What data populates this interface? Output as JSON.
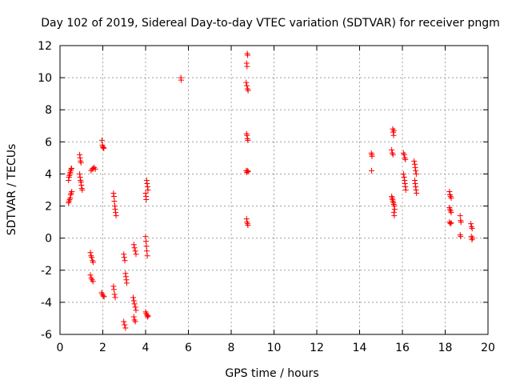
{
  "chart_data": {
    "type": "scatter",
    "title": "Day 102 of 2019, Sidereal Day-to-day VTEC variation (SDTVAR) for receiver pngm",
    "xlabel": "GPS time / hours",
    "ylabel": "SDTVAR / TECUs",
    "xlim": [
      0,
      20
    ],
    "ylim": [
      -6,
      12
    ],
    "xticks": [
      0,
      2,
      4,
      6,
      8,
      10,
      12,
      14,
      16,
      18,
      20
    ],
    "yticks": [
      -6,
      -4,
      -2,
      0,
      2,
      4,
      6,
      8,
      10,
      12
    ],
    "grid": true,
    "marker": "+",
    "color": "#ff0000",
    "series": [
      {
        "name": "SDTVAR",
        "points": [
          [
            0.4,
            3.6
          ],
          [
            0.42,
            3.8
          ],
          [
            0.44,
            3.9
          ],
          [
            0.46,
            4.0
          ],
          [
            0.48,
            4.1
          ],
          [
            0.5,
            4.2
          ],
          [
            0.52,
            4.3
          ],
          [
            0.54,
            4.35
          ],
          [
            0.4,
            2.2
          ],
          [
            0.42,
            2.3
          ],
          [
            0.45,
            2.4
          ],
          [
            0.48,
            2.5
          ],
          [
            0.5,
            2.7
          ],
          [
            0.52,
            2.8
          ],
          [
            0.55,
            2.9
          ],
          [
            0.92,
            5.2
          ],
          [
            0.94,
            5.0
          ],
          [
            0.96,
            4.8
          ],
          [
            0.98,
            4.7
          ],
          [
            0.92,
            4.0
          ],
          [
            0.94,
            3.8
          ],
          [
            0.96,
            3.6
          ],
          [
            0.98,
            3.5
          ],
          [
            1.0,
            3.3
          ],
          [
            1.02,
            3.1
          ],
          [
            1.04,
            3.0
          ],
          [
            1.45,
            4.2
          ],
          [
            1.5,
            4.3
          ],
          [
            1.55,
            4.35
          ],
          [
            1.6,
            4.4
          ],
          [
            1.65,
            4.3
          ],
          [
            1.42,
            -0.9
          ],
          [
            1.45,
            -1.1
          ],
          [
            1.48,
            -1.2
          ],
          [
            1.52,
            -1.4
          ],
          [
            1.55,
            -1.5
          ],
          [
            1.42,
            -2.3
          ],
          [
            1.46,
            -2.5
          ],
          [
            1.5,
            -2.6
          ],
          [
            1.54,
            -2.7
          ],
          [
            1.96,
            6.1
          ],
          [
            1.98,
            5.8
          ],
          [
            2.0,
            5.7
          ],
          [
            2.02,
            5.65
          ],
          [
            2.05,
            5.6
          ],
          [
            1.94,
            -3.4
          ],
          [
            1.98,
            -3.5
          ],
          [
            2.02,
            -3.6
          ],
          [
            2.06,
            -3.65
          ],
          [
            2.5,
            2.8
          ],
          [
            2.52,
            2.6
          ],
          [
            2.54,
            2.3
          ],
          [
            2.56,
            2.0
          ],
          [
            2.58,
            1.8
          ],
          [
            2.6,
            1.6
          ],
          [
            2.62,
            1.4
          ],
          [
            2.5,
            -3.0
          ],
          [
            2.52,
            -3.2
          ],
          [
            2.55,
            -3.5
          ],
          [
            2.58,
            -3.7
          ],
          [
            2.98,
            -1.0
          ],
          [
            3.0,
            -1.2
          ],
          [
            3.03,
            -1.4
          ],
          [
            3.06,
            -2.2
          ],
          [
            3.08,
            -2.4
          ],
          [
            3.1,
            -2.6
          ],
          [
            3.12,
            -2.8
          ],
          [
            2.98,
            -5.2
          ],
          [
            3.02,
            -5.4
          ],
          [
            3.06,
            -5.6
          ],
          [
            3.45,
            -0.4
          ],
          [
            3.48,
            -0.6
          ],
          [
            3.52,
            -0.8
          ],
          [
            3.55,
            -1.0
          ],
          [
            3.42,
            -3.7
          ],
          [
            3.45,
            -3.9
          ],
          [
            3.48,
            -4.1
          ],
          [
            3.52,
            -4.3
          ],
          [
            3.55,
            -4.5
          ],
          [
            3.45,
            -4.9
          ],
          [
            3.48,
            -5.1
          ],
          [
            3.52,
            -5.2
          ],
          [
            4.05,
            3.6
          ],
          [
            4.07,
            3.4
          ],
          [
            4.09,
            3.2
          ],
          [
            4.11,
            3.0
          ],
          [
            4.0,
            2.8
          ],
          [
            4.02,
            2.6
          ],
          [
            4.03,
            2.4
          ],
          [
            4.0,
            0.1
          ],
          [
            4.02,
            -0.2
          ],
          [
            4.04,
            -0.5
          ],
          [
            4.06,
            -0.8
          ],
          [
            4.08,
            -1.1
          ],
          [
            4.0,
            -4.6
          ],
          [
            4.03,
            -4.7
          ],
          [
            4.06,
            -4.8
          ],
          [
            4.09,
            -4.9
          ],
          [
            4.12,
            -4.85
          ],
          [
            5.65,
            10.0
          ],
          [
            5.66,
            9.85
          ],
          [
            8.75,
            11.5
          ],
          [
            8.77,
            11.4
          ],
          [
            8.72,
            10.9
          ],
          [
            8.74,
            10.7
          ],
          [
            8.7,
            9.7
          ],
          [
            8.73,
            9.5
          ],
          [
            8.76,
            9.3
          ],
          [
            8.79,
            9.2
          ],
          [
            8.72,
            6.5
          ],
          [
            8.74,
            6.4
          ],
          [
            8.76,
            6.2
          ],
          [
            8.78,
            6.1
          ],
          [
            8.7,
            4.2
          ],
          [
            8.73,
            4.1
          ],
          [
            8.76,
            4.2
          ],
          [
            8.79,
            4.15
          ],
          [
            8.72,
            1.2
          ],
          [
            8.74,
            1.0
          ],
          [
            8.76,
            0.9
          ],
          [
            8.78,
            0.8
          ],
          [
            14.55,
            5.3
          ],
          [
            14.57,
            5.2
          ],
          [
            14.58,
            5.1
          ],
          [
            14.56,
            4.2
          ],
          [
            15.55,
            6.8
          ],
          [
            15.57,
            6.6
          ],
          [
            15.59,
            6.4
          ],
          [
            15.6,
            6.7
          ],
          [
            15.5,
            5.5
          ],
          [
            15.53,
            5.3
          ],
          [
            15.56,
            5.2
          ],
          [
            15.5,
            2.6
          ],
          [
            15.52,
            2.5
          ],
          [
            15.54,
            2.4
          ],
          [
            15.56,
            2.3
          ],
          [
            15.58,
            2.2
          ],
          [
            15.6,
            2.1
          ],
          [
            15.62,
            2.0
          ],
          [
            15.64,
            1.8
          ],
          [
            15.6,
            1.6
          ],
          [
            15.62,
            1.4
          ],
          [
            16.05,
            5.3
          ],
          [
            16.08,
            5.2
          ],
          [
            16.11,
            5.0
          ],
          [
            16.14,
            4.9
          ],
          [
            16.05,
            4.0
          ],
          [
            16.08,
            3.8
          ],
          [
            16.1,
            3.6
          ],
          [
            16.12,
            3.4
          ],
          [
            16.14,
            3.2
          ],
          [
            16.16,
            3.0
          ],
          [
            16.55,
            4.8
          ],
          [
            16.58,
            4.6
          ],
          [
            16.6,
            4.4
          ],
          [
            16.62,
            4.2
          ],
          [
            16.65,
            4.0
          ],
          [
            16.58,
            3.6
          ],
          [
            16.6,
            3.4
          ],
          [
            16.62,
            3.2
          ],
          [
            16.64,
            3.0
          ],
          [
            16.66,
            2.8
          ],
          [
            18.2,
            2.9
          ],
          [
            18.22,
            2.7
          ],
          [
            18.25,
            2.6
          ],
          [
            18.28,
            2.5
          ],
          [
            18.2,
            1.9
          ],
          [
            18.22,
            1.8
          ],
          [
            18.25,
            1.7
          ],
          [
            18.28,
            1.6
          ],
          [
            18.2,
            1.0
          ],
          [
            18.24,
            0.9
          ],
          [
            18.28,
            0.95
          ],
          [
            18.7,
            1.4
          ],
          [
            18.72,
            1.1
          ],
          [
            18.74,
            1.0
          ],
          [
            18.7,
            0.2
          ],
          [
            18.72,
            0.1
          ],
          [
            19.2,
            0.9
          ],
          [
            19.23,
            0.7
          ],
          [
            19.26,
            0.6
          ],
          [
            19.22,
            0.1
          ],
          [
            19.25,
            -0.1
          ],
          [
            19.28,
            0.0
          ]
        ]
      }
    ]
  }
}
